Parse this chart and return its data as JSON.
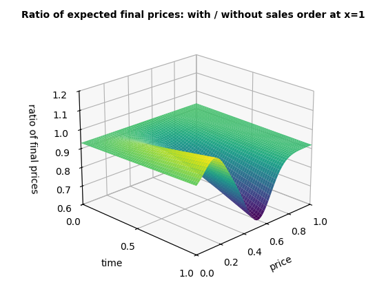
{
  "title": "Ratio of expected final prices: with / without sales order at x=1",
  "xlabel": "price",
  "ylabel": "time",
  "zlabel": "ratio of final prices",
  "xlim": [
    0,
    1
  ],
  "ylim": [
    0,
    1
  ],
  "zlim": [
    0.6,
    1.2
  ],
  "n_points": 60,
  "elev": 22,
  "azim": -135,
  "cmap": "viridis",
  "xticks": [
    0,
    0.2,
    0.4,
    0.6,
    0.8,
    1.0
  ],
  "yticks": [
    0,
    0.5,
    1.0
  ],
  "zticks": [
    0.6,
    0.7,
    0.8,
    0.9,
    1.0,
    1.1,
    1.2
  ],
  "title_fontsize": 10,
  "bg_color": "#f0f0f0"
}
